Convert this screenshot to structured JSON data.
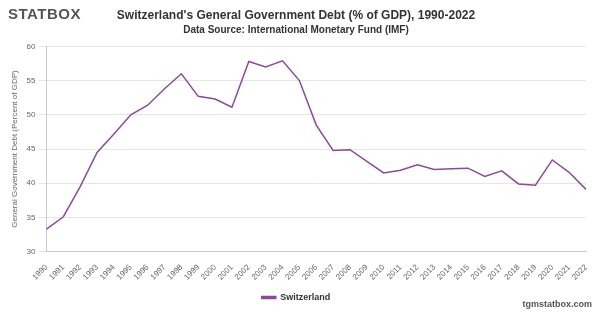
{
  "chart_data": {
    "type": "line",
    "title": "Switzerland's General Government Debt (% of GDP), 1990-2022",
    "subtitle": "Data Source: International Monetary Fund (IMF)",
    "y_label": "General Government Debt (Percent of GDP)",
    "annotations": [
      "STATBOX",
      "tgmstatbox.com"
    ],
    "categories": [
      "1990",
      "1991",
      "1992",
      "1993",
      "1994",
      "1995",
      "1996",
      "1997",
      "1998",
      "1999",
      "2000",
      "2001",
      "2002",
      "2003",
      "2004",
      "2005",
      "2006",
      "2007",
      "2008",
      "2009",
      "2010",
      "2011",
      "2012",
      "2013",
      "2014",
      "2015",
      "2016",
      "2017",
      "2018",
      "2019",
      "2020",
      "2021",
      "2022"
    ],
    "series": [
      {
        "name": "Switzerland",
        "color": "#8b4a9c",
        "values": [
          33.3,
          35.1,
          39.5,
          44.5,
          47.2,
          50.0,
          51.4,
          53.8,
          56.0,
          52.7,
          52.3,
          51.1,
          57.8,
          57.0,
          57.9,
          55.0,
          48.5,
          44.8,
          44.9,
          43.2,
          41.5,
          41.9,
          42.7,
          42.0,
          42.1,
          42.2,
          41.0,
          41.8,
          39.9,
          39.7,
          43.4,
          41.6,
          39.1
        ]
      }
    ],
    "ylim": [
      30,
      60
    ],
    "yticks": [
      30,
      35,
      40,
      45,
      50,
      55,
      60
    ],
    "grid": true,
    "legend": "bottom"
  }
}
